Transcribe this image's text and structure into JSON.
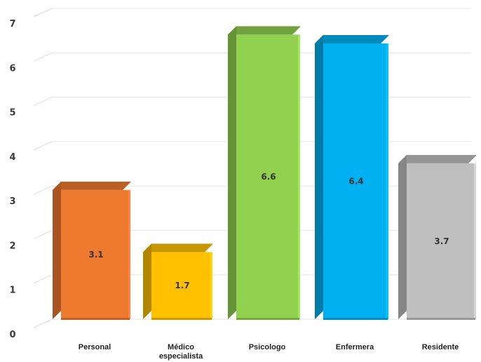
{
  "chart_data": {
    "type": "bar",
    "categories": [
      "Personal",
      "Médico especialista",
      "Psicologo",
      "Enfermera",
      "Residente"
    ],
    "category_lines": [
      [
        "Personal"
      ],
      [
        "Médico",
        "especialista"
      ],
      [
        "Psicologo"
      ],
      [
        "Enfermera"
      ],
      [
        "Residente"
      ]
    ],
    "values": [
      3.1,
      1.7,
      6.6,
      6.4,
      3.7
    ],
    "data_labels": [
      "3.1",
      "1.7",
      "6.6",
      "6.4",
      "3.7"
    ],
    "colors": [
      "#EE7A30",
      "#FFC000",
      "#92D050",
      "#00B0F0",
      "#BFBFBF"
    ],
    "ylim": [
      0,
      7
    ],
    "yticks": [
      "0",
      "1",
      "2",
      "3",
      "4",
      "5",
      "6",
      "7"
    ],
    "grid": true,
    "style": "3d-bar"
  }
}
